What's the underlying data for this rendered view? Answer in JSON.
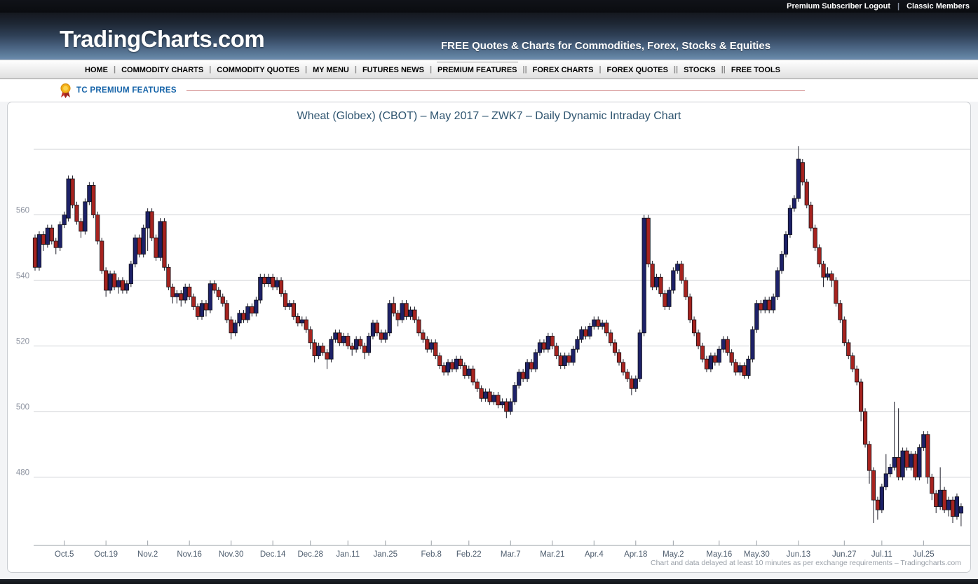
{
  "topbar": {
    "links": [
      "Premium Subscriber Logout",
      "Classic Members"
    ],
    "separator": "|"
  },
  "header": {
    "logo": "TradingCharts.com",
    "tagline": "FREE Quotes & Charts for Commodities, Forex, Stocks & Equities"
  },
  "nav": {
    "items": [
      {
        "label": "HOME",
        "sep": "|"
      },
      {
        "label": "COMMODITY CHARTS",
        "sep": "|"
      },
      {
        "label": "COMMODITY QUOTES",
        "sep": "|"
      },
      {
        "label": "MY MENU",
        "sep": "|"
      },
      {
        "label": "FUTURES NEWS",
        "sep": "|"
      },
      {
        "label": "PREMIUM FEATURES",
        "sep": "||",
        "active": true
      },
      {
        "label": "FOREX CHARTS",
        "sep": "|"
      },
      {
        "label": "FOREX QUOTES",
        "sep": "||"
      },
      {
        "label": "STOCKS",
        "sep": "||"
      },
      {
        "label": "FREE TOOLS",
        "sep": ""
      }
    ]
  },
  "premium": {
    "icon": "premium-medal-icon",
    "label": "TC PREMIUM FEATURES"
  },
  "footer": {
    "disclaimer": "Chart and data delayed at least 10 minutes as per exchange requirements – Tradingcharts.com"
  },
  "chart_data": {
    "type": "candlestick",
    "title": "Wheat (Globex) (CBOT) – May 2017 – ZWK7 – Daily Dynamic Intraday Chart",
    "ylabel_ticks": [
      560,
      540,
      520,
      500,
      480
    ],
    "gridline_prices": [
      580,
      560,
      540,
      520,
      500,
      480
    ],
    "ylim": [
      463,
      584
    ],
    "grid": true,
    "colors": {
      "up": "#1d2168",
      "down": "#a6231f",
      "wick": "#1c1c28",
      "grid": "#cfd2d5",
      "axis": "#9aa0a6",
      "xlabel": "#4e5d6e",
      "ylabel": "#8d93a0"
    },
    "xticks": [
      [
        "Oct.5",
        7
      ],
      [
        "Oct.19",
        17
      ],
      [
        "Nov.2",
        27
      ],
      [
        "Nov.16",
        37
      ],
      [
        "Nov.30",
        47
      ],
      [
        "Dec.14",
        57
      ],
      [
        "Dec.28",
        66
      ],
      [
        "Jan.11",
        75
      ],
      [
        "Jan.25",
        84
      ],
      [
        "Feb.8",
        95
      ],
      [
        "Feb.22",
        104
      ],
      [
        "Mar.7",
        114
      ],
      [
        "Mar.21",
        124
      ],
      [
        "Apr.4",
        134
      ],
      [
        "Apr.18",
        144
      ],
      [
        "May.2",
        153
      ],
      [
        "May.16",
        164
      ],
      [
        "May.30",
        173
      ],
      [
        "Jun.13",
        183
      ],
      [
        "Jun.27",
        194
      ],
      [
        "Jul.11",
        203
      ],
      [
        "Jul.25",
        213
      ]
    ],
    "candles": [
      [
        553,
        554,
        543,
        544
      ],
      [
        544,
        555,
        543,
        554
      ],
      [
        554,
        555,
        549,
        551
      ],
      [
        551,
        557,
        550,
        556
      ],
      [
        556,
        557,
        551,
        552
      ],
      [
        552,
        553,
        548,
        550
      ],
      [
        550,
        558,
        549,
        557
      ],
      [
        557,
        561,
        556,
        560
      ],
      [
        559,
        572,
        558,
        571
      ],
      [
        571,
        572,
        562,
        563
      ],
      [
        563,
        564,
        557,
        558
      ],
      [
        558,
        559,
        553,
        555
      ],
      [
        555,
        565,
        554,
        564
      ],
      [
        564,
        570,
        563,
        569
      ],
      [
        569,
        570,
        559,
        560
      ],
      [
        560,
        561,
        551,
        552
      ],
      [
        552,
        553,
        542,
        543
      ],
      [
        543,
        544,
        535,
        537
      ],
      [
        537,
        543,
        536,
        542
      ],
      [
        542,
        543,
        537,
        538
      ],
      [
        538,
        541,
        536,
        540
      ],
      [
        540,
        541,
        536,
        537
      ],
      [
        537,
        540,
        536,
        539
      ],
      [
        539,
        546,
        538,
        545
      ],
      [
        545,
        554,
        544,
        553
      ],
      [
        553,
        554,
        547,
        548
      ],
      [
        548,
        557,
        547,
        556
      ],
      [
        556,
        562,
        549,
        561
      ],
      [
        561,
        562,
        552,
        553
      ],
      [
        553,
        554,
        546,
        547
      ],
      [
        547,
        559,
        546,
        558
      ],
      [
        558,
        559,
        543,
        544
      ],
      [
        544,
        545,
        537,
        538
      ],
      [
        538,
        539,
        533,
        535
      ],
      [
        535,
        537,
        533,
        536
      ],
      [
        536,
        537,
        532,
        534
      ],
      [
        534,
        539,
        533,
        538
      ],
      [
        538,
        539,
        534,
        535
      ],
      [
        535,
        536,
        531,
        532
      ],
      [
        532,
        533,
        528,
        529
      ],
      [
        529,
        534,
        528,
        533
      ],
      [
        533,
        534,
        529,
        531
      ],
      [
        531,
        540,
        530,
        539
      ],
      [
        539,
        540,
        536,
        537
      ],
      [
        537,
        538,
        534,
        535
      ],
      [
        535,
        536,
        532,
        533
      ],
      [
        533,
        534,
        527,
        528
      ],
      [
        528,
        529,
        522,
        524
      ],
      [
        524,
        528,
        523,
        527
      ],
      [
        527,
        531,
        526,
        530
      ],
      [
        530,
        531,
        527,
        528
      ],
      [
        528,
        533,
        527,
        532
      ],
      [
        532,
        533,
        529,
        530
      ],
      [
        530,
        535,
        529,
        534
      ],
      [
        534,
        542,
        533,
        541
      ],
      [
        541,
        542,
        538,
        539
      ],
      [
        539,
        542,
        538,
        541
      ],
      [
        541,
        542,
        537,
        538
      ],
      [
        538,
        541,
        537,
        540
      ],
      [
        540,
        541,
        535,
        536
      ],
      [
        536,
        537,
        531,
        532
      ],
      [
        532,
        534,
        531,
        533
      ],
      [
        533,
        534,
        528,
        529
      ],
      [
        529,
        530,
        526,
        527
      ],
      [
        527,
        529,
        526,
        528
      ],
      [
        528,
        529,
        524,
        525
      ],
      [
        525,
        526,
        519,
        521
      ],
      [
        521,
        522,
        515,
        517
      ],
      [
        517,
        521,
        516,
        520
      ],
      [
        520,
        521,
        517,
        518
      ],
      [
        518,
        519,
        513,
        516
      ],
      [
        516,
        523,
        515,
        522
      ],
      [
        522,
        525,
        521,
        524
      ],
      [
        524,
        525,
        520,
        521
      ],
      [
        521,
        524,
        520,
        523
      ],
      [
        523,
        524,
        519,
        520
      ],
      [
        520,
        521,
        517,
        519
      ],
      [
        519,
        523,
        518,
        522
      ],
      [
        522,
        523,
        519,
        520
      ],
      [
        520,
        521,
        516,
        518
      ],
      [
        518,
        524,
        517,
        523
      ],
      [
        523,
        528,
        522,
        527
      ],
      [
        527,
        528,
        523,
        524
      ],
      [
        524,
        525,
        521,
        522
      ],
      [
        522,
        525,
        521,
        524
      ],
      [
        524,
        534,
        523,
        533
      ],
      [
        533,
        535,
        529,
        530
      ],
      [
        530,
        531,
        526,
        528
      ],
      [
        528,
        534,
        527,
        533
      ],
      [
        533,
        534,
        528,
        529
      ],
      [
        529,
        532,
        528,
        531
      ],
      [
        531,
        532,
        527,
        528
      ],
      [
        528,
        529,
        523,
        524
      ],
      [
        524,
        525,
        521,
        522
      ],
      [
        522,
        523,
        518,
        519
      ],
      [
        519,
        522,
        518,
        521
      ],
      [
        521,
        522,
        516,
        517
      ],
      [
        517,
        518,
        513,
        514
      ],
      [
        514,
        515,
        511,
        512
      ],
      [
        512,
        516,
        511,
        515
      ],
      [
        515,
        516,
        512,
        513
      ],
      [
        513,
        517,
        512,
        516
      ],
      [
        516,
        517,
        513,
        514
      ],
      [
        514,
        515,
        510,
        511
      ],
      [
        511,
        514,
        510,
        513
      ],
      [
        513,
        514,
        508,
        509
      ],
      [
        509,
        510,
        506,
        507
      ],
      [
        507,
        508,
        503,
        504
      ],
      [
        504,
        507,
        503,
        506
      ],
      [
        506,
        507,
        502,
        503
      ],
      [
        503,
        506,
        502,
        505
      ],
      [
        505,
        506,
        501,
        502
      ],
      [
        502,
        504,
        501,
        503
      ],
      [
        503,
        504,
        498,
        500
      ],
      [
        500,
        504,
        499,
        503
      ],
      [
        503,
        509,
        502,
        508
      ],
      [
        508,
        513,
        507,
        512
      ],
      [
        512,
        513,
        509,
        510
      ],
      [
        510,
        516,
        509,
        515
      ],
      [
        515,
        516,
        512,
        513
      ],
      [
        513,
        519,
        512,
        518
      ],
      [
        518,
        522,
        517,
        521
      ],
      [
        521,
        522,
        518,
        519
      ],
      [
        519,
        524,
        518,
        523
      ],
      [
        523,
        524,
        519,
        520
      ],
      [
        520,
        521,
        516,
        517
      ],
      [
        517,
        518,
        513,
        514
      ],
      [
        514,
        518,
        513,
        517
      ],
      [
        517,
        518,
        514,
        515
      ],
      [
        515,
        520,
        514,
        519
      ],
      [
        519,
        523,
        518,
        522
      ],
      [
        522,
        526,
        521,
        525
      ],
      [
        525,
        526,
        522,
        523
      ],
      [
        523,
        527,
        522,
        526
      ],
      [
        526,
        529,
        525,
        528
      ],
      [
        528,
        529,
        525,
        526
      ],
      [
        526,
        528,
        525,
        527
      ],
      [
        527,
        528,
        523,
        524
      ],
      [
        524,
        525,
        520,
        521
      ],
      [
        521,
        522,
        517,
        518
      ],
      [
        518,
        519,
        514,
        515
      ],
      [
        515,
        516,
        511,
        512
      ],
      [
        512,
        513,
        509,
        510
      ],
      [
        510,
        511,
        505,
        507
      ],
      [
        507,
        511,
        506,
        510
      ],
      [
        510,
        525,
        509,
        524
      ],
      [
        524,
        560,
        523,
        559
      ],
      [
        559,
        560,
        544,
        545
      ],
      [
        545,
        546,
        537,
        538
      ],
      [
        538,
        542,
        537,
        541
      ],
      [
        541,
        542,
        535,
        536
      ],
      [
        536,
        537,
        531,
        532
      ],
      [
        532,
        538,
        531,
        537
      ],
      [
        537,
        544,
        536,
        543
      ],
      [
        543,
        546,
        542,
        545
      ],
      [
        545,
        546,
        539,
        540
      ],
      [
        540,
        541,
        534,
        535
      ],
      [
        535,
        536,
        527,
        528
      ],
      [
        528,
        529,
        523,
        524
      ],
      [
        524,
        525,
        519,
        520
      ],
      [
        520,
        521,
        515,
        516
      ],
      [
        516,
        517,
        512,
        513
      ],
      [
        513,
        518,
        512,
        517
      ],
      [
        517,
        518,
        514,
        515
      ],
      [
        515,
        520,
        514,
        519
      ],
      [
        519,
        523,
        518,
        522
      ],
      [
        522,
        523,
        517,
        518
      ],
      [
        518,
        519,
        514,
        515
      ],
      [
        515,
        516,
        511,
        512
      ],
      [
        512,
        515,
        511,
        514
      ],
      [
        514,
        515,
        510,
        511
      ],
      [
        511,
        517,
        510,
        516
      ],
      [
        516,
        526,
        515,
        525
      ],
      [
        525,
        534,
        524,
        533
      ],
      [
        533,
        534,
        530,
        531
      ],
      [
        531,
        535,
        530,
        534
      ],
      [
        534,
        535,
        530,
        531
      ],
      [
        531,
        536,
        530,
        535
      ],
      [
        535,
        544,
        534,
        543
      ],
      [
        543,
        549,
        542,
        548
      ],
      [
        548,
        555,
        547,
        554
      ],
      [
        554,
        563,
        553,
        562
      ],
      [
        562,
        566,
        561,
        565
      ],
      [
        565,
        581,
        564,
        577
      ],
      [
        576,
        577,
        569,
        570
      ],
      [
        570,
        571,
        562,
        563
      ],
      [
        563,
        564,
        555,
        556
      ],
      [
        556,
        557,
        549,
        550
      ],
      [
        550,
        551,
        544,
        545
      ],
      [
        545,
        546,
        538,
        541
      ],
      [
        541,
        544,
        540,
        542
      ],
      [
        542,
        543,
        538,
        540
      ],
      [
        540,
        541,
        532,
        533
      ],
      [
        533,
        534,
        527,
        528
      ],
      [
        528,
        529,
        520,
        521
      ],
      [
        521,
        522,
        516,
        517
      ],
      [
        517,
        518,
        512,
        513
      ],
      [
        513,
        514,
        508,
        509
      ],
      [
        509,
        510,
        497,
        500
      ],
      [
        500,
        501,
        489,
        490
      ],
      [
        490,
        491,
        478,
        482
      ],
      [
        482,
        483,
        466,
        473
      ],
      [
        473,
        474,
        467,
        470
      ],
      [
        470,
        478,
        469,
        477
      ],
      [
        477,
        487,
        476,
        481
      ],
      [
        481,
        484,
        480,
        483
      ],
      [
        483,
        503,
        482,
        486
      ],
      [
        486,
        501,
        479,
        480
      ],
      [
        480,
        489,
        479,
        488
      ],
      [
        488,
        489,
        482,
        483
      ],
      [
        483,
        488,
        482,
        487
      ],
      [
        487,
        488,
        479,
        480
      ],
      [
        480,
        490,
        479,
        489
      ],
      [
        489,
        494,
        488,
        493
      ],
      [
        493,
        494,
        478,
        480
      ],
      [
        480,
        481,
        473,
        475
      ],
      [
        475,
        476,
        469,
        471
      ],
      [
        471,
        483,
        470,
        476
      ],
      [
        476,
        477,
        469,
        470
      ],
      [
        470,
        474,
        468,
        473
      ],
      [
        473,
        474,
        466,
        468
      ],
      [
        468,
        475,
        467,
        474
      ],
      [
        469,
        472,
        465,
        471
      ]
    ]
  }
}
